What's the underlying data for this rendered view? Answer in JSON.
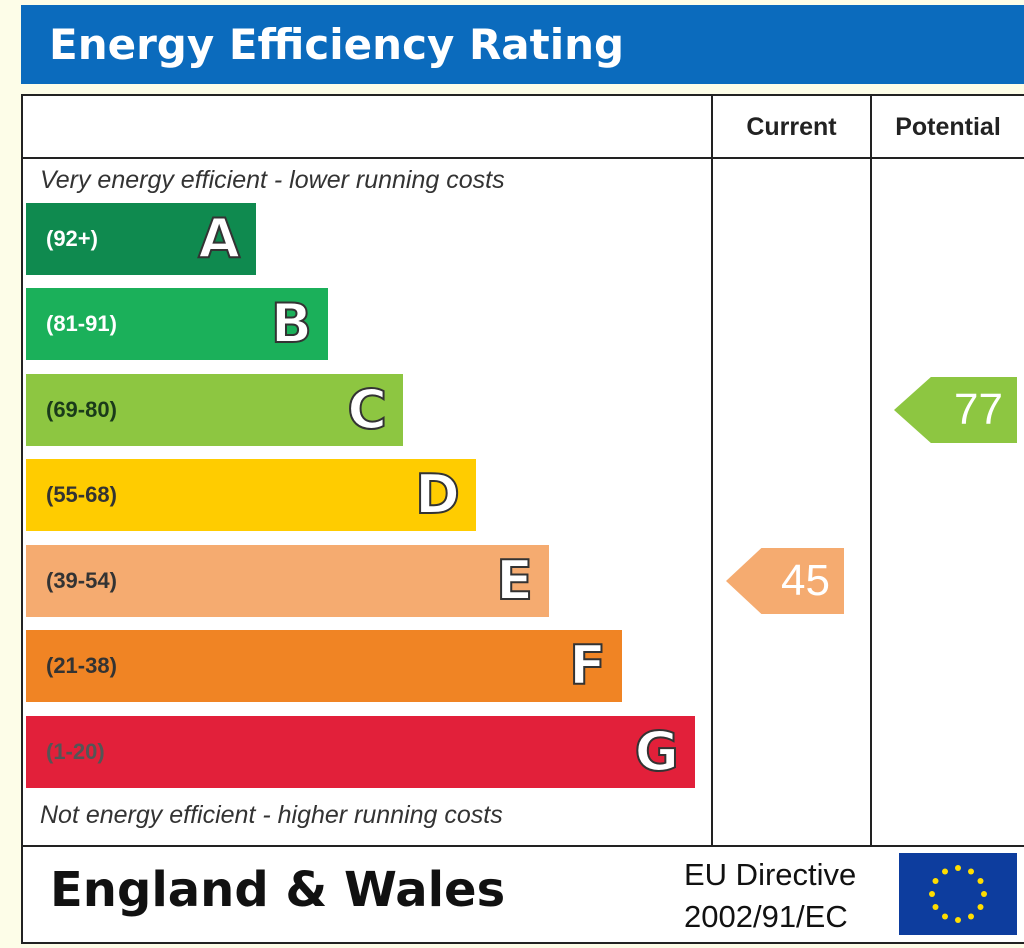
{
  "header": {
    "title": "Energy Efficiency Rating"
  },
  "columns": {
    "current": "Current",
    "potential": "Potential"
  },
  "notes": {
    "top": "Very energy efficient - lower running costs",
    "bottom": "Not energy efficient - higher running costs"
  },
  "chart_data": {
    "type": "bar",
    "title": "Energy Efficiency Rating",
    "categories": [
      "A",
      "B",
      "C",
      "D",
      "E",
      "F",
      "G"
    ],
    "ranges": [
      "(92+)",
      "(81-91)",
      "(69-80)",
      "(55-68)",
      "(39-54)",
      "(21-38)",
      "(1-20)"
    ],
    "band_colors": [
      "#0f8a4f",
      "#1bb05a",
      "#8dc641",
      "#ffcc00",
      "#f5ab70",
      "#f08424",
      "#e2203a"
    ],
    "range_text_colors": [
      "#ffffff",
      "#ffffff",
      "#1a3a1a",
      "#333333",
      "#333333",
      "#333333",
      "#555555"
    ],
    "current": {
      "value": 45,
      "band": "E",
      "color": "#f5ab70"
    },
    "potential": {
      "value": 77,
      "band": "C",
      "color": "#8dc641"
    }
  },
  "footer": {
    "region": "England & Wales",
    "directive_line1": "EU Directive",
    "directive_line2": "2002/91/EC"
  }
}
